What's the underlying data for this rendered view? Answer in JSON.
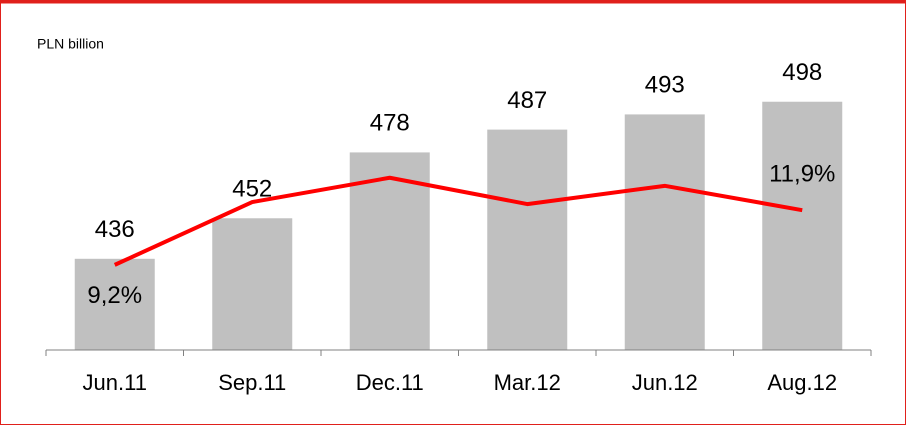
{
  "chart_data": {
    "type": "bar",
    "y_label": "PLN billion",
    "categories": [
      "Jun.11",
      "Sep.11",
      "Dec.11",
      "Mar.12",
      "Jun.12",
      "Aug.12"
    ],
    "ylim": [
      400,
      520
    ],
    "y2lim": [
      5,
      20
    ],
    "series": [
      {
        "type": "bar",
        "color": "#c0c0c0",
        "values": [
          436,
          452,
          478,
          487,
          493,
          498
        ]
      },
      {
        "type": "line",
        "axis": "y2",
        "color": "#ff0000",
        "values": [
          9.2,
          12.3,
          13.5,
          12.2,
          13.1,
          11.9
        ],
        "value_labels": [
          "9,2%",
          null,
          null,
          null,
          null,
          "11,9%"
        ]
      }
    ]
  }
}
